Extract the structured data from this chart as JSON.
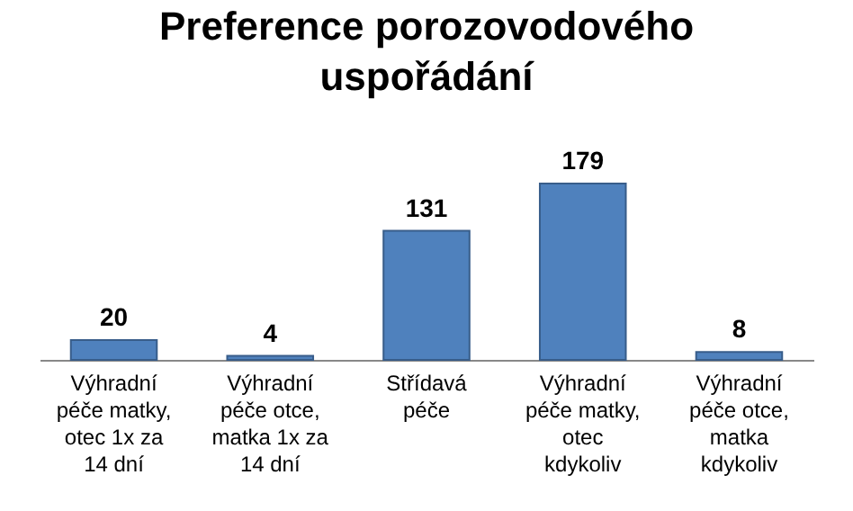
{
  "chart_data": {
    "type": "bar",
    "title": "Preference porozovodového uspořádání",
    "categories": [
      "Výhradní péče matky, otec 1x za 14 dní",
      "Výhradní péče otce, matka 1x za 14 dní",
      "Střídavá péče",
      "Výhradní péče matky, otec kdykoliv",
      "Výhradní péče otce, matka kdykoliv"
    ],
    "values": [
      20,
      4,
      131,
      179,
      8
    ],
    "color": "#4f81bd",
    "data_labels": true
  }
}
